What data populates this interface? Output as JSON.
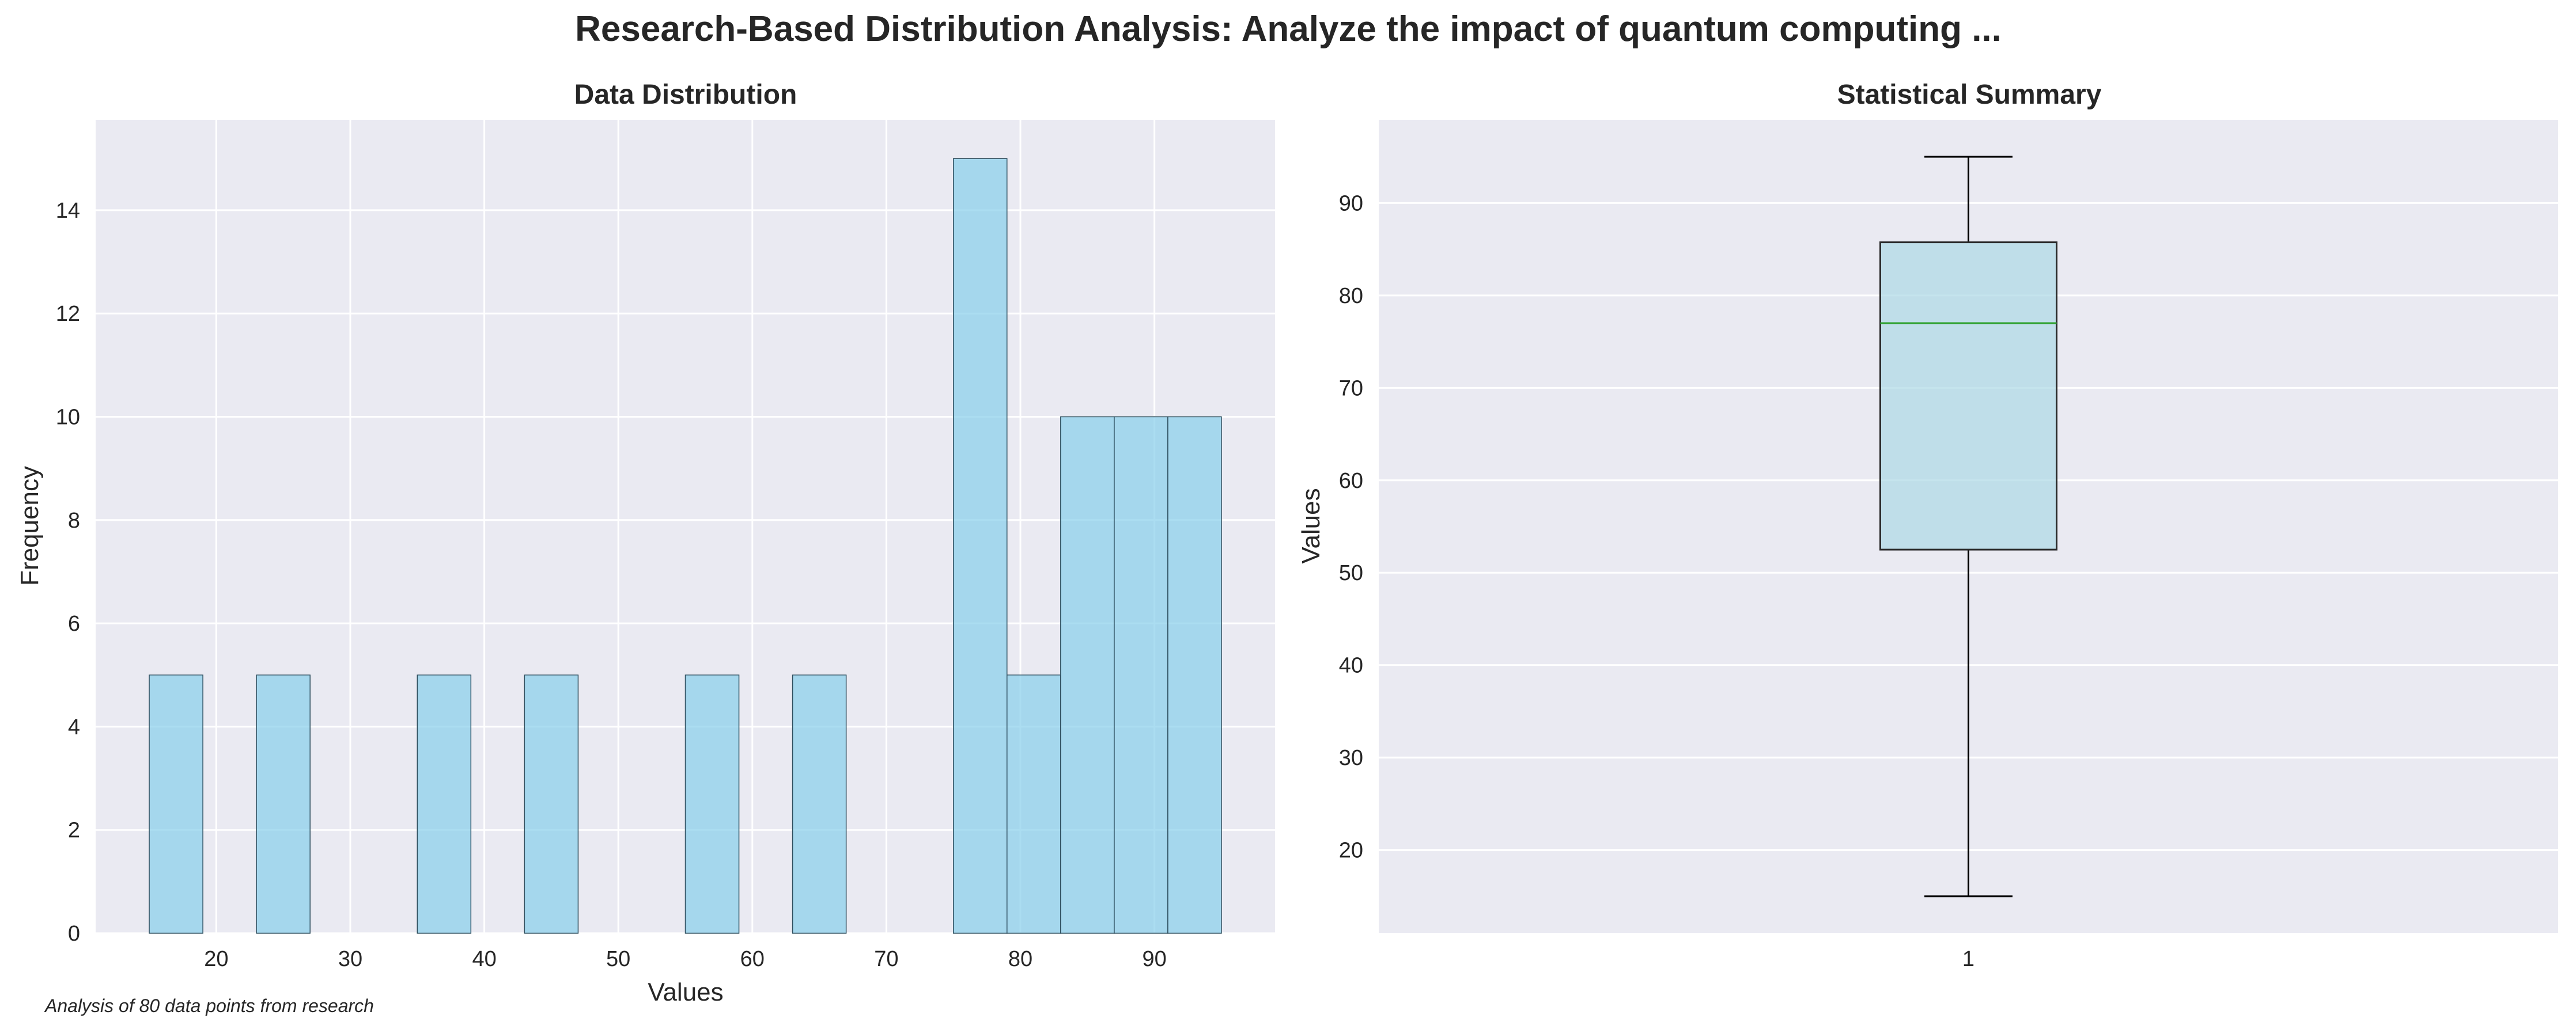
{
  "figure": {
    "suptitle": "Research-Based Distribution Analysis: Analyze the impact of quantum computing ...",
    "footnote": "Analysis of 80 data points from research"
  },
  "colors": {
    "axes_bg": "#EAEAF2",
    "grid": "#FFFFFF",
    "hist_fill": "#87CEEB",
    "hist_edge": "#2F4F5F",
    "box_fill": "#ADD8E6",
    "box_edge": "#2B2B2B",
    "median": "#2CA02C",
    "whisker": "#000000"
  },
  "chart_data": [
    {
      "type": "bar",
      "subtype": "histogram",
      "title": "Data Distribution",
      "xlabel": "Values",
      "ylabel": "Frequency",
      "xlim": [
        11.0,
        99.0
      ],
      "ylim": [
        0,
        15.75
      ],
      "xticks": [
        20,
        30,
        40,
        50,
        60,
        70,
        80,
        90
      ],
      "yticks": [
        0,
        2,
        4,
        6,
        8,
        10,
        12,
        14
      ],
      "grid": true,
      "bins": [
        {
          "start": 15,
          "end": 19,
          "count": 5
        },
        {
          "start": 19,
          "end": 23,
          "count": 0
        },
        {
          "start": 23,
          "end": 27,
          "count": 5
        },
        {
          "start": 27,
          "end": 31,
          "count": 0
        },
        {
          "start": 31,
          "end": 35,
          "count": 0
        },
        {
          "start": 35,
          "end": 39,
          "count": 5
        },
        {
          "start": 39,
          "end": 43,
          "count": 0
        },
        {
          "start": 43,
          "end": 47,
          "count": 5
        },
        {
          "start": 47,
          "end": 51,
          "count": 0
        },
        {
          "start": 51,
          "end": 55,
          "count": 0
        },
        {
          "start": 55,
          "end": 59,
          "count": 5
        },
        {
          "start": 59,
          "end": 63,
          "count": 0
        },
        {
          "start": 63,
          "end": 67,
          "count": 5
        },
        {
          "start": 67,
          "end": 71,
          "count": 0
        },
        {
          "start": 71,
          "end": 75,
          "count": 0
        },
        {
          "start": 75,
          "end": 79,
          "count": 15
        },
        {
          "start": 79,
          "end": 83,
          "count": 5
        },
        {
          "start": 83,
          "end": 87,
          "count": 10
        },
        {
          "start": 87,
          "end": 91,
          "count": 10
        },
        {
          "start": 91,
          "end": 95,
          "count": 10
        }
      ]
    },
    {
      "type": "boxplot",
      "title": "Statistical Summary",
      "xlabel": "",
      "ylabel": "Values",
      "ylim": [
        11.0,
        99.0
      ],
      "yticks": [
        20,
        30,
        40,
        50,
        60,
        70,
        80,
        90
      ],
      "xticks": [
        "1"
      ],
      "grid": true,
      "stats": {
        "min": 15,
        "q1": 52.5,
        "median": 77,
        "q3": 85.75,
        "max": 95
      }
    }
  ]
}
